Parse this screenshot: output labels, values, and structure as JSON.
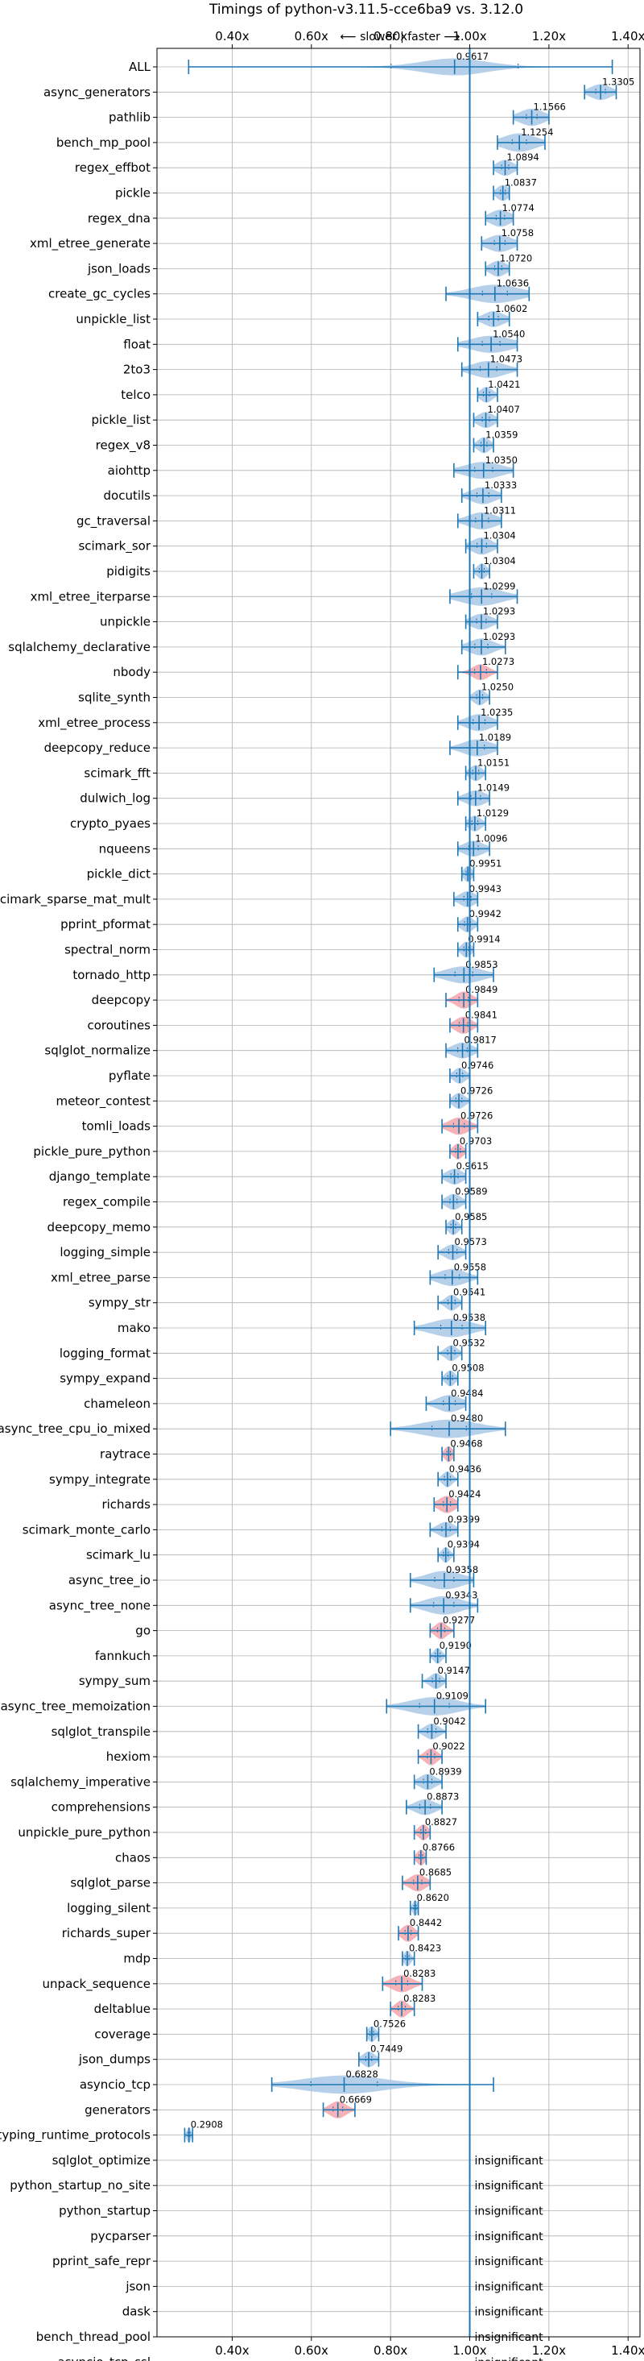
{
  "chart_data": {
    "type": "violin",
    "title": "Timings of python-v3.11.5-cce6ba9 vs. 3.12.0",
    "subtitle": "⟵ slower | faster ⟶",
    "xlim": [
      0.21,
      1.43
    ],
    "xticks": [
      "0.40x",
      "0.60x",
      "0.80x",
      "1.00x",
      "1.20x",
      "1.40x"
    ],
    "xtick_values": [
      0.4,
      0.6,
      0.8,
      1.0,
      1.2,
      1.4
    ],
    "reference_line": 1.0,
    "grid": true,
    "colors": {
      "faster": "#a9c8e6",
      "slower": "#f4a6aa",
      "line": "#1f77b4",
      "grid": "#b0b0b0"
    },
    "insignificant_label": "insignificant",
    "benchmarks": [
      {
        "name": "ALL",
        "value": 0.9617,
        "label": "0.9617",
        "lo": 0.29,
        "hi": 1.36,
        "spread": 0.08,
        "width": 0.55
      },
      {
        "name": "async_generators",
        "value": 1.3305,
        "label": "1.3305",
        "lo": 1.29,
        "hi": 1.37,
        "spread": 0.025,
        "width": 0.5
      },
      {
        "name": "pathlib",
        "value": 1.1566,
        "label": "1.1566",
        "lo": 1.11,
        "hi": 1.2,
        "spread": 0.03,
        "width": 0.55
      },
      {
        "name": "bench_mp_pool",
        "value": 1.1254,
        "label": "1.1254",
        "lo": 1.07,
        "hi": 1.19,
        "spread": 0.04,
        "width": 0.6
      },
      {
        "name": "regex_effbot",
        "value": 1.0894,
        "label": "1.0894",
        "lo": 1.06,
        "hi": 1.12,
        "spread": 0.02,
        "width": 0.5
      },
      {
        "name": "pickle",
        "value": 1.0837,
        "label": "1.0837",
        "lo": 1.06,
        "hi": 1.1,
        "spread": 0.015,
        "width": 0.5
      },
      {
        "name": "regex_dna",
        "value": 1.0774,
        "label": "1.0774",
        "lo": 1.04,
        "hi": 1.11,
        "spread": 0.025,
        "width": 0.55
      },
      {
        "name": "xml_etree_generate",
        "value": 1.0758,
        "label": "1.0758",
        "lo": 1.03,
        "hi": 1.12,
        "spread": 0.03,
        "width": 0.55
      },
      {
        "name": "json_loads",
        "value": 1.072,
        "label": "1.0720",
        "lo": 1.04,
        "hi": 1.1,
        "spread": 0.02,
        "width": 0.5
      },
      {
        "name": "create_gc_cycles",
        "value": 1.0636,
        "label": "1.0636",
        "lo": 0.94,
        "hi": 1.15,
        "spread": 0.06,
        "width": 0.6
      },
      {
        "name": "unpickle_list",
        "value": 1.0602,
        "label": "1.0602",
        "lo": 1.02,
        "hi": 1.1,
        "spread": 0.025,
        "width": 0.5
      },
      {
        "name": "float",
        "value": 1.054,
        "label": "1.0540",
        "lo": 0.97,
        "hi": 1.12,
        "spread": 0.05,
        "width": 0.55
      },
      {
        "name": "2to3",
        "value": 1.0473,
        "label": "1.0473",
        "lo": 0.98,
        "hi": 1.12,
        "spread": 0.04,
        "width": 0.55
      },
      {
        "name": "telco",
        "value": 1.0421,
        "label": "1.0421",
        "lo": 1.02,
        "hi": 1.07,
        "spread": 0.015,
        "width": 0.5
      },
      {
        "name": "pickle_list",
        "value": 1.0407,
        "label": "1.0407",
        "lo": 1.01,
        "hi": 1.07,
        "spread": 0.02,
        "width": 0.5
      },
      {
        "name": "regex_v8",
        "value": 1.0359,
        "label": "1.0359",
        "lo": 1.01,
        "hi": 1.06,
        "spread": 0.015,
        "width": 0.5
      },
      {
        "name": "aiohttp",
        "value": 1.035,
        "label": "1.0350",
        "lo": 0.96,
        "hi": 1.11,
        "spread": 0.045,
        "width": 0.55
      },
      {
        "name": "docutils",
        "value": 1.0333,
        "label": "1.0333",
        "lo": 0.98,
        "hi": 1.08,
        "spread": 0.03,
        "width": 0.55
      },
      {
        "name": "gc_traversal",
        "value": 1.0311,
        "label": "1.0311",
        "lo": 0.97,
        "hi": 1.08,
        "spread": 0.035,
        "width": 0.55
      },
      {
        "name": "scimark_sor",
        "value": 1.0304,
        "label": "1.0304",
        "lo": 0.99,
        "hi": 1.07,
        "spread": 0.025,
        "width": 0.55
      },
      {
        "name": "pidigits",
        "value": 1.0304,
        "label": "1.0304",
        "lo": 1.01,
        "hi": 1.05,
        "spread": 0.012,
        "width": 0.5
      },
      {
        "name": "xml_etree_iterparse",
        "value": 1.0299,
        "label": "1.0299",
        "lo": 0.95,
        "hi": 1.12,
        "spread": 0.05,
        "width": 0.6
      },
      {
        "name": "unpickle",
        "value": 1.0293,
        "label": "1.0293",
        "lo": 0.99,
        "hi": 1.07,
        "spread": 0.025,
        "width": 0.5
      },
      {
        "name": "sqlalchemy_declarative",
        "value": 1.0293,
        "label": "1.0293",
        "lo": 0.98,
        "hi": 1.09,
        "spread": 0.03,
        "width": 0.55
      },
      {
        "name": "nbody",
        "value": 1.0273,
        "label": "1.0273",
        "lo": 0.97,
        "hi": 1.07,
        "spread": 0.02,
        "width": 0.5,
        "slower": true
      },
      {
        "name": "sqlite_synth",
        "value": 1.025,
        "label": "1.0250",
        "lo": 1.0,
        "hi": 1.05,
        "spread": 0.015,
        "width": 0.5
      },
      {
        "name": "xml_etree_process",
        "value": 1.0235,
        "label": "1.0235",
        "lo": 0.97,
        "hi": 1.07,
        "spread": 0.03,
        "width": 0.55
      },
      {
        "name": "deepcopy_reduce",
        "value": 1.0189,
        "label": "1.0189",
        "lo": 0.95,
        "hi": 1.07,
        "spread": 0.035,
        "width": 0.55
      },
      {
        "name": "scimark_fft",
        "value": 1.0151,
        "label": "1.0151",
        "lo": 0.99,
        "hi": 1.04,
        "spread": 0.015,
        "width": 0.5
      },
      {
        "name": "dulwich_log",
        "value": 1.0149,
        "label": "1.0149",
        "lo": 0.97,
        "hi": 1.05,
        "spread": 0.025,
        "width": 0.5
      },
      {
        "name": "crypto_pyaes",
        "value": 1.0129,
        "label": "1.0129",
        "lo": 0.99,
        "hi": 1.04,
        "spread": 0.015,
        "width": 0.5
      },
      {
        "name": "nqueens",
        "value": 1.0096,
        "label": "1.0096",
        "lo": 0.97,
        "hi": 1.05,
        "spread": 0.025,
        "width": 0.5
      },
      {
        "name": "pickle_dict",
        "value": 0.9951,
        "label": "0.9951",
        "lo": 0.98,
        "hi": 1.01,
        "spread": 0.01,
        "width": 0.5
      },
      {
        "name": "scimark_sparse_mat_mult",
        "value": 0.9943,
        "label": "0.9943",
        "lo": 0.96,
        "hi": 1.02,
        "spread": 0.02,
        "width": 0.5
      },
      {
        "name": "pprint_pformat",
        "value": 0.9942,
        "label": "0.9942",
        "lo": 0.97,
        "hi": 1.02,
        "spread": 0.015,
        "width": 0.5
      },
      {
        "name": "spectral_norm",
        "value": 0.9914,
        "label": "0.9914",
        "lo": 0.97,
        "hi": 1.01,
        "spread": 0.012,
        "width": 0.5
      },
      {
        "name": "tornado_http",
        "value": 0.9853,
        "label": "0.9853",
        "lo": 0.91,
        "hi": 1.06,
        "spread": 0.045,
        "width": 0.55
      },
      {
        "name": "deepcopy",
        "value": 0.9849,
        "label": "0.9849",
        "lo": 0.94,
        "hi": 1.02,
        "spread": 0.02,
        "width": 0.55,
        "slower": true
      },
      {
        "name": "coroutines",
        "value": 0.9841,
        "label": "0.9841",
        "lo": 0.95,
        "hi": 1.02,
        "spread": 0.02,
        "width": 0.55,
        "slower": true
      },
      {
        "name": "sqlglot_normalize",
        "value": 0.9817,
        "label": "0.9817",
        "lo": 0.94,
        "hi": 1.02,
        "spread": 0.025,
        "width": 0.5
      },
      {
        "name": "pyflate",
        "value": 0.9746,
        "label": "0.9746",
        "lo": 0.95,
        "hi": 1.0,
        "spread": 0.015,
        "width": 0.5
      },
      {
        "name": "meteor_contest",
        "value": 0.9726,
        "label": "0.9726",
        "lo": 0.95,
        "hi": 1.0,
        "spread": 0.015,
        "width": 0.5
      },
      {
        "name": "tomli_loads",
        "value": 0.9726,
        "label": "0.9726",
        "lo": 0.93,
        "hi": 1.02,
        "spread": 0.025,
        "width": 0.55,
        "slower": true
      },
      {
        "name": "pickle_pure_python",
        "value": 0.9703,
        "label": "0.9703",
        "lo": 0.95,
        "hi": 0.99,
        "spread": 0.012,
        "width": 0.5,
        "slower": true
      },
      {
        "name": "django_template",
        "value": 0.9615,
        "label": "0.9615",
        "lo": 0.93,
        "hi": 0.99,
        "spread": 0.02,
        "width": 0.5
      },
      {
        "name": "regex_compile",
        "value": 0.9589,
        "label": "0.9589",
        "lo": 0.93,
        "hi": 0.99,
        "spread": 0.018,
        "width": 0.5
      },
      {
        "name": "deepcopy_memo",
        "value": 0.9585,
        "label": "0.9585",
        "lo": 0.94,
        "hi": 0.98,
        "spread": 0.012,
        "width": 0.5
      },
      {
        "name": "logging_simple",
        "value": 0.9573,
        "label": "0.9573",
        "lo": 0.92,
        "hi": 0.99,
        "spread": 0.02,
        "width": 0.5
      },
      {
        "name": "xml_etree_parse",
        "value": 0.9558,
        "label": "0.9558",
        "lo": 0.9,
        "hi": 1.02,
        "spread": 0.035,
        "width": 0.55
      },
      {
        "name": "sympy_str",
        "value": 0.9541,
        "label": "0.9541",
        "lo": 0.92,
        "hi": 0.98,
        "spread": 0.015,
        "width": 0.5
      },
      {
        "name": "mako",
        "value": 0.9538,
        "label": "0.9538",
        "lo": 0.86,
        "hi": 1.04,
        "spread": 0.05,
        "width": 0.6
      },
      {
        "name": "logging_format",
        "value": 0.9532,
        "label": "0.9532",
        "lo": 0.92,
        "hi": 0.98,
        "spread": 0.015,
        "width": 0.5
      },
      {
        "name": "sympy_expand",
        "value": 0.9508,
        "label": "0.9508",
        "lo": 0.93,
        "hi": 0.97,
        "spread": 0.012,
        "width": 0.5
      },
      {
        "name": "chameleon",
        "value": 0.9484,
        "label": "0.9484",
        "lo": 0.89,
        "hi": 0.99,
        "spread": 0.03,
        "width": 0.55
      },
      {
        "name": "async_tree_cpu_io_mixed",
        "value": 0.948,
        "label": "0.9480",
        "lo": 0.8,
        "hi": 1.09,
        "spread": 0.07,
        "width": 0.6
      },
      {
        "name": "raytrace",
        "value": 0.9468,
        "label": "0.9468",
        "lo": 0.93,
        "hi": 0.96,
        "spread": 0.01,
        "width": 0.5,
        "slower": true
      },
      {
        "name": "sympy_integrate",
        "value": 0.9436,
        "label": "0.9436",
        "lo": 0.92,
        "hi": 0.97,
        "spread": 0.012,
        "width": 0.5
      },
      {
        "name": "richards",
        "value": 0.9424,
        "label": "0.9424",
        "lo": 0.91,
        "hi": 0.97,
        "spread": 0.02,
        "width": 0.55,
        "slower": true
      },
      {
        "name": "scimark_monte_carlo",
        "value": 0.9399,
        "label": "0.9399",
        "lo": 0.9,
        "hi": 0.97,
        "spread": 0.02,
        "width": 0.5
      },
      {
        "name": "scimark_lu",
        "value": 0.9394,
        "label": "0.9394",
        "lo": 0.92,
        "hi": 0.96,
        "spread": 0.01,
        "width": 0.5
      },
      {
        "name": "async_tree_io",
        "value": 0.9358,
        "label": "0.9358",
        "lo": 0.85,
        "hi": 1.01,
        "spread": 0.045,
        "width": 0.6
      },
      {
        "name": "async_tree_none",
        "value": 0.9343,
        "label": "0.9343",
        "lo": 0.85,
        "hi": 1.02,
        "spread": 0.045,
        "width": 0.6
      },
      {
        "name": "go",
        "value": 0.9277,
        "label": "0.9277",
        "lo": 0.9,
        "hi": 0.96,
        "spread": 0.015,
        "width": 0.55,
        "slower": true
      },
      {
        "name": "fannkuch",
        "value": 0.919,
        "label": "0.9190",
        "lo": 0.9,
        "hi": 0.94,
        "spread": 0.01,
        "width": 0.5
      },
      {
        "name": "sympy_sum",
        "value": 0.9147,
        "label": "0.9147",
        "lo": 0.88,
        "hi": 0.94,
        "spread": 0.015,
        "width": 0.5
      },
      {
        "name": "async_tree_memoization",
        "value": 0.9109,
        "label": "0.9109",
        "lo": 0.79,
        "hi": 1.04,
        "spread": 0.06,
        "width": 0.6
      },
      {
        "name": "sqlglot_transpile",
        "value": 0.9042,
        "label": "0.9042",
        "lo": 0.87,
        "hi": 0.94,
        "spread": 0.018,
        "width": 0.5
      },
      {
        "name": "hexiom",
        "value": 0.9022,
        "label": "0.9022",
        "lo": 0.87,
        "hi": 0.93,
        "spread": 0.015,
        "width": 0.55,
        "slower": true
      },
      {
        "name": "sqlalchemy_imperative",
        "value": 0.8939,
        "label": "0.8939",
        "lo": 0.86,
        "hi": 0.93,
        "spread": 0.02,
        "width": 0.5
      },
      {
        "name": "comprehensions",
        "value": 0.8873,
        "label": "0.8873",
        "lo": 0.84,
        "hi": 0.93,
        "spread": 0.025,
        "width": 0.5
      },
      {
        "name": "unpickle_pure_python",
        "value": 0.8827,
        "label": "0.8827",
        "lo": 0.86,
        "hi": 0.9,
        "spread": 0.012,
        "width": 0.5,
        "slower": true
      },
      {
        "name": "chaos",
        "value": 0.8766,
        "label": "0.8766",
        "lo": 0.86,
        "hi": 0.89,
        "spread": 0.01,
        "width": 0.5,
        "slower": true
      },
      {
        "name": "sqlglot_parse",
        "value": 0.8685,
        "label": "0.8685",
        "lo": 0.83,
        "hi": 0.9,
        "spread": 0.02,
        "width": 0.55,
        "slower": true
      },
      {
        "name": "logging_silent",
        "value": 0.862,
        "label": "0.8620",
        "lo": 0.85,
        "hi": 0.87,
        "spread": 0.006,
        "width": 0.5
      },
      {
        "name": "richards_super",
        "value": 0.8442,
        "label": "0.8442",
        "lo": 0.82,
        "hi": 0.87,
        "spread": 0.015,
        "width": 0.55,
        "slower": true
      },
      {
        "name": "mdp",
        "value": 0.8423,
        "label": "0.8423",
        "lo": 0.83,
        "hi": 0.86,
        "spread": 0.008,
        "width": 0.5
      },
      {
        "name": "unpack_sequence",
        "value": 0.8283,
        "label": "0.8283",
        "lo": 0.78,
        "hi": 0.88,
        "spread": 0.025,
        "width": 0.55,
        "slower": true
      },
      {
        "name": "deltablue",
        "value": 0.8283,
        "label": "0.8283",
        "lo": 0.8,
        "hi": 0.86,
        "spread": 0.015,
        "width": 0.55,
        "slower": true
      },
      {
        "name": "coverage",
        "value": 0.7526,
        "label": "0.7526",
        "lo": 0.74,
        "hi": 0.77,
        "spread": 0.01,
        "width": 0.5
      },
      {
        "name": "json_dumps",
        "value": 0.7449,
        "label": "0.7449",
        "lo": 0.72,
        "hi": 0.77,
        "spread": 0.015,
        "width": 0.5
      },
      {
        "name": "asyncio_tcp",
        "value": 0.6828,
        "label": "0.6828",
        "lo": 0.5,
        "hi": 1.06,
        "spread": 0.1,
        "width": 0.6
      },
      {
        "name": "generators",
        "value": 0.6669,
        "label": "0.6669",
        "lo": 0.63,
        "hi": 0.71,
        "spread": 0.02,
        "width": 0.55,
        "slower": true
      },
      {
        "name": "typing_runtime_protocols",
        "value": 0.2908,
        "label": "0.2908",
        "lo": 0.28,
        "hi": 0.3,
        "spread": 0.005,
        "width": 0.5
      },
      {
        "name": "sqlglot_optimize",
        "insignificant": true
      },
      {
        "name": "python_startup_no_site",
        "insignificant": true
      },
      {
        "name": "python_startup",
        "insignificant": true
      },
      {
        "name": "pycparser",
        "insignificant": true
      },
      {
        "name": "pprint_safe_repr",
        "insignificant": true
      },
      {
        "name": "json",
        "insignificant": true
      },
      {
        "name": "dask",
        "insignificant": true
      },
      {
        "name": "bench_thread_pool",
        "insignificant": true
      },
      {
        "name": "asyncio_tcp_ssl",
        "insignificant": true
      }
    ]
  }
}
